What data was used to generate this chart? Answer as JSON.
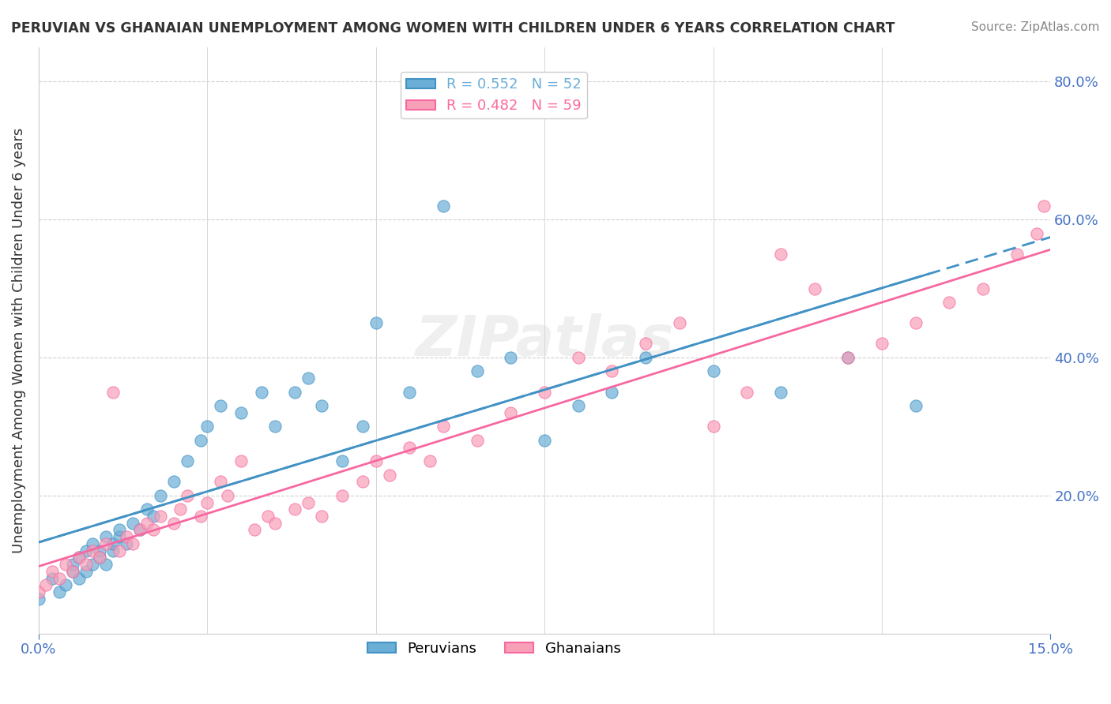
{
  "title": "PERUVIAN VS GHANAIAN UNEMPLOYMENT AMONG WOMEN WITH CHILDREN UNDER 6 YEARS CORRELATION CHART",
  "source": "Source: ZipAtlas.com",
  "ylabel": "Unemployment Among Women with Children Under 6 years",
  "xlim": [
    0.0,
    0.15
  ],
  "ylim": [
    0.0,
    0.85
  ],
  "yticks": [
    0.0,
    0.2,
    0.4,
    0.6,
    0.8
  ],
  "ytick_labels": [
    "",
    "20.0%",
    "40.0%",
    "60.0%",
    "80.0%"
  ],
  "xticks": [
    0.0,
    0.15
  ],
  "xtick_labels": [
    "0.0%",
    "15.0%"
  ],
  "legend_entries": [
    {
      "label": "R = 0.552   N = 52",
      "color": "#6baed6"
    },
    {
      "label": "R = 0.482   N = 59",
      "color": "#fb6a9a"
    }
  ],
  "peruvian_color": "#6baed6",
  "ghanaian_color": "#f8a0b8",
  "line_peruvian_color": "#4292c6",
  "line_ghanaian_color": "#f768a1",
  "peruvians_x": [
    0.0,
    0.002,
    0.003,
    0.004,
    0.005,
    0.005,
    0.006,
    0.006,
    0.007,
    0.007,
    0.008,
    0.008,
    0.009,
    0.009,
    0.01,
    0.01,
    0.011,
    0.011,
    0.012,
    0.012,
    0.013,
    0.014,
    0.015,
    0.016,
    0.017,
    0.018,
    0.02,
    0.022,
    0.024,
    0.025,
    0.027,
    0.03,
    0.033,
    0.035,
    0.038,
    0.04,
    0.042,
    0.045,
    0.048,
    0.05,
    0.055,
    0.06,
    0.065,
    0.07,
    0.075,
    0.08,
    0.085,
    0.09,
    0.1,
    0.11,
    0.12,
    0.13
  ],
  "peruvians_y": [
    0.05,
    0.08,
    0.06,
    0.07,
    0.09,
    0.1,
    0.08,
    0.11,
    0.09,
    0.12,
    0.1,
    0.13,
    0.11,
    0.12,
    0.1,
    0.14,
    0.12,
    0.13,
    0.14,
    0.15,
    0.13,
    0.16,
    0.15,
    0.18,
    0.17,
    0.2,
    0.22,
    0.25,
    0.28,
    0.3,
    0.33,
    0.32,
    0.35,
    0.3,
    0.35,
    0.37,
    0.33,
    0.25,
    0.3,
    0.45,
    0.35,
    0.62,
    0.38,
    0.4,
    0.28,
    0.33,
    0.35,
    0.4,
    0.38,
    0.35,
    0.4,
    0.33
  ],
  "ghanaians_x": [
    0.0,
    0.001,
    0.002,
    0.003,
    0.004,
    0.005,
    0.006,
    0.007,
    0.008,
    0.009,
    0.01,
    0.011,
    0.012,
    0.013,
    0.014,
    0.015,
    0.016,
    0.017,
    0.018,
    0.02,
    0.021,
    0.022,
    0.024,
    0.025,
    0.027,
    0.028,
    0.03,
    0.032,
    0.034,
    0.035,
    0.038,
    0.04,
    0.042,
    0.045,
    0.048,
    0.05,
    0.052,
    0.055,
    0.058,
    0.06,
    0.065,
    0.07,
    0.075,
    0.08,
    0.085,
    0.09,
    0.095,
    0.1,
    0.105,
    0.11,
    0.115,
    0.12,
    0.125,
    0.13,
    0.135,
    0.14,
    0.145,
    0.148,
    0.149
  ],
  "ghanaians_y": [
    0.06,
    0.07,
    0.09,
    0.08,
    0.1,
    0.09,
    0.11,
    0.1,
    0.12,
    0.11,
    0.13,
    0.35,
    0.12,
    0.14,
    0.13,
    0.15,
    0.16,
    0.15,
    0.17,
    0.16,
    0.18,
    0.2,
    0.17,
    0.19,
    0.22,
    0.2,
    0.25,
    0.15,
    0.17,
    0.16,
    0.18,
    0.19,
    0.17,
    0.2,
    0.22,
    0.25,
    0.23,
    0.27,
    0.25,
    0.3,
    0.28,
    0.32,
    0.35,
    0.4,
    0.38,
    0.42,
    0.45,
    0.3,
    0.35,
    0.55,
    0.5,
    0.4,
    0.42,
    0.45,
    0.48,
    0.5,
    0.55,
    0.58,
    0.62
  ],
  "watermark": "ZIPatlas",
  "background_color": "#ffffff",
  "grid_color": "#d0d0d0"
}
